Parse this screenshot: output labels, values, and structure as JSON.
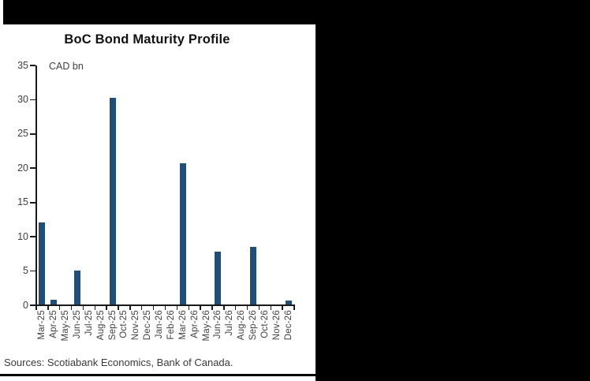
{
  "frame": {
    "background_color": "#000000",
    "panel_color": "#ffffff"
  },
  "chart": {
    "title": "BoC Bond Maturity Profile",
    "unit_label": "CAD bn",
    "source_note": "Sources: Scotiabank Economics, Bank of Canada.",
    "colors": {
      "bar": "#1f4e79",
      "axis": "#1a1a1a",
      "tick_label": "#3f3f3f"
    }
  },
  "chart_data": {
    "type": "bar",
    "title": "BoC Bond Maturity Profile",
    "ylabel": "CAD bn",
    "xlabel": "",
    "categories": [
      "Mar-25",
      "Apr-25",
      "May-25",
      "Jun-25",
      "Jul-25",
      "Aug-25",
      "Sep-25",
      "Oct-25",
      "Nov-25",
      "Dec-25",
      "Jan-26",
      "Feb-26",
      "Mar-26",
      "Apr-26",
      "May-26",
      "Jun-26",
      "Jul-26",
      "Aug-26",
      "Sep-26",
      "Oct-26",
      "Nov-26",
      "Dec-26"
    ],
    "values": [
      12.0,
      0.7,
      0,
      4.9,
      0,
      0,
      30.1,
      0,
      0,
      0,
      0,
      0,
      20.6,
      0,
      0,
      7.7,
      0,
      0,
      8.4,
      0,
      0,
      0.5
    ],
    "ylim": [
      0,
      35
    ],
    "ytick_interval": 5,
    "yticks": [
      0,
      5,
      10,
      15,
      20,
      25,
      30,
      35
    ],
    "grid": false,
    "legend": null,
    "bar_color": "#1f4e79",
    "x_label_rotation": -90
  }
}
